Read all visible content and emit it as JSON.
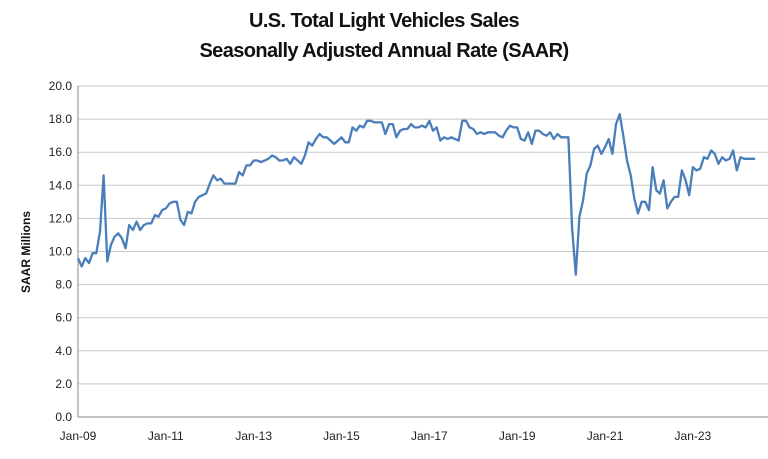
{
  "chart_data": {
    "type": "line",
    "title": "U.S. Total Light Vehicles Sales",
    "subtitle": "Seasonally Adjusted Annual Rate (SAAR)",
    "xlabel": "",
    "ylabel": "SAAR Millions",
    "ylim": [
      0,
      20
    ],
    "y_ticks": [
      "0.0",
      "2.0",
      "4.0",
      "6.0",
      "8.0",
      "10.0",
      "12.0",
      "14.0",
      "16.0",
      "18.0",
      "20.0"
    ],
    "x_ticks": [
      "Jan-09",
      "Jan-11",
      "Jan-13",
      "Jan-15",
      "Jan-17",
      "Jan-19",
      "Jan-21",
      "Jan-23"
    ],
    "x_start": "Jan-09",
    "x_unit": "month",
    "grid": "horizontal",
    "legend": "none",
    "color": "#4a7ebb",
    "series": [
      {
        "name": "SAAR",
        "values": [
          9.6,
          9.1,
          9.6,
          9.3,
          9.9,
          9.9,
          11.2,
          14.6,
          9.4,
          10.4,
          10.9,
          11.1,
          10.8,
          10.2,
          11.6,
          11.3,
          11.8,
          11.3,
          11.6,
          11.7,
          11.7,
          12.2,
          12.1,
          12.5,
          12.6,
          12.9,
          13.0,
          13.0,
          11.9,
          11.6,
          12.4,
          12.3,
          13.0,
          13.3,
          13.4,
          13.5,
          14.1,
          14.6,
          14.3,
          14.4,
          14.1,
          14.1,
          14.1,
          14.1,
          14.8,
          14.6,
          15.2,
          15.2,
          15.5,
          15.5,
          15.4,
          15.5,
          15.6,
          15.8,
          15.7,
          15.5,
          15.5,
          15.6,
          15.3,
          15.7,
          15.5,
          15.3,
          15.8,
          16.6,
          16.4,
          16.8,
          17.1,
          16.9,
          16.9,
          16.7,
          16.5,
          16.7,
          16.9,
          16.6,
          16.6,
          17.5,
          17.3,
          17.6,
          17.5,
          17.9,
          17.9,
          17.8,
          17.8,
          17.8,
          17.1,
          17.7,
          17.7,
          16.9,
          17.3,
          17.4,
          17.4,
          17.7,
          17.5,
          17.5,
          17.6,
          17.5,
          17.9,
          17.3,
          17.5,
          16.7,
          16.9,
          16.8,
          16.9,
          16.8,
          16.7,
          17.9,
          17.9,
          17.5,
          17.4,
          17.1,
          17.2,
          17.1,
          17.2,
          17.2,
          17.2,
          17.0,
          16.9,
          17.3,
          17.6,
          17.5,
          17.5,
          16.8,
          16.7,
          17.2,
          16.5,
          17.3,
          17.3,
          17.1,
          17.0,
          17.2,
          16.8,
          17.1,
          16.9,
          16.9,
          16.9,
          11.4,
          8.6,
          12.1,
          13.1,
          14.7,
          15.2,
          16.2,
          16.4,
          15.9,
          16.3,
          16.8,
          15.9,
          17.7,
          18.3,
          17.0,
          15.5,
          14.6,
          13.2,
          12.3,
          13.0,
          13.0,
          12.5,
          15.1,
          13.7,
          13.5,
          14.3,
          12.6,
          13.0,
          13.3,
          13.3,
          14.9,
          14.3,
          13.4,
          15.1,
          14.9,
          15.0,
          15.7,
          15.6,
          16.1,
          15.9,
          15.3,
          15.7,
          15.5,
          15.6,
          16.1,
          14.9,
          15.7,
          15.6,
          15.6,
          15.6,
          15.6
        ]
      }
    ]
  }
}
